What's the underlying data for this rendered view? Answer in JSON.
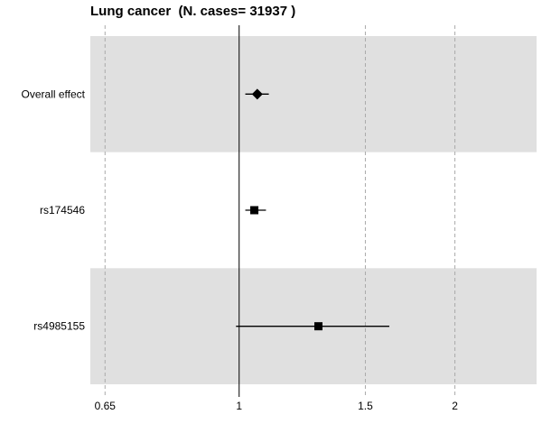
{
  "chart_data": {
    "type": "forest",
    "title": "Lung cancer  (N. cases= 31937 )",
    "x_scale": "log",
    "x_ticks": [
      0.65,
      1,
      1.5,
      2
    ],
    "x_tick_labels": [
      "0.65",
      "1",
      "1.5",
      "2"
    ],
    "xlim": [
      0.62,
      2.6
    ],
    "reference_line": 1,
    "rows": [
      {
        "label": "Overall effect",
        "estimate": 1.06,
        "lower": 1.02,
        "upper": 1.1,
        "marker": "diamond",
        "shaded": true
      },
      {
        "label": "rs174546",
        "estimate": 1.05,
        "lower": 1.02,
        "upper": 1.09,
        "marker": "square",
        "shaded": false
      },
      {
        "label": "rs4985155",
        "estimate": 1.29,
        "lower": 0.99,
        "upper": 1.62,
        "marker": "square",
        "shaded": true
      }
    ],
    "colors": {
      "band": "#e0e0e0",
      "marker": "#000000",
      "grid": "#aaaaaa"
    }
  }
}
